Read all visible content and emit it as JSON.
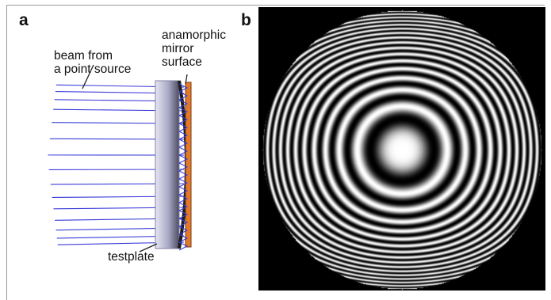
{
  "panel_a": {
    "letter": "a",
    "labels": {
      "beam": "beam from\na point source",
      "mirror": "anamorphic\nmirror\nsurface",
      "testplate": "testplate"
    }
  },
  "panel_b": {
    "letter": "b"
  },
  "colors": {
    "ray": "#3a3ad8",
    "testplate_dark": "#55556a",
    "testplate_light": "#d8d8ee",
    "mirror": "#e07a2a",
    "fringe_bg": "#000000"
  }
}
